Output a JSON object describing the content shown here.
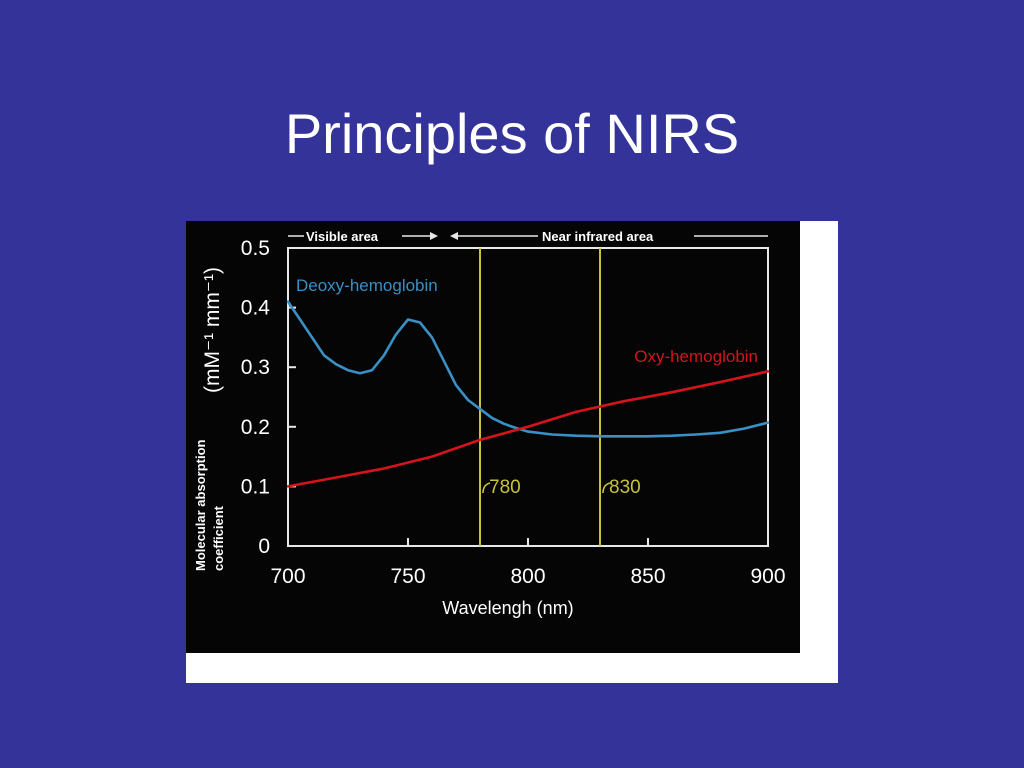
{
  "slide": {
    "title": "Principles of NIRS"
  },
  "colors": {
    "background": "#333399",
    "deoxy": "#3a8fc4",
    "oxy": "#d4141a",
    "marker": "#c8c23a",
    "axis": "#e8e8e8"
  },
  "chart_data": {
    "type": "line",
    "xlabel": "Wavelengh (nm)",
    "ylabel_main": "Molecular absorption",
    "ylabel_sub": "coefficient",
    "ylabel_unit": "(mM⁻¹ mm⁻¹)",
    "xlim": [
      700,
      900
    ],
    "ylim": [
      0,
      0.5
    ],
    "x_ticks": [
      700,
      750,
      800,
      850,
      900
    ],
    "x_tick_labels": [
      "700",
      "750",
      "800",
      "850",
      "900"
    ],
    "y_ticks": [
      0,
      0.1,
      0.2,
      0.3,
      0.4,
      0.5
    ],
    "y_tick_labels": [
      "0",
      "0.1",
      "0.2",
      "0.3",
      "0.4",
      "0.5"
    ],
    "region_labels": {
      "visible": "Visible area",
      "near_infrared": "Near infrared area"
    },
    "region_boundary": 780,
    "markers": [
      {
        "x": 780,
        "label": "780"
      },
      {
        "x": 830,
        "label": "830"
      }
    ],
    "series": [
      {
        "name": "Deoxy-hemoglobin",
        "x": [
          700,
          705,
          710,
          715,
          720,
          725,
          730,
          735,
          740,
          745,
          750,
          755,
          760,
          765,
          770,
          775,
          780,
          785,
          790,
          795,
          800,
          810,
          820,
          830,
          840,
          850,
          860,
          870,
          880,
          890,
          900
        ],
        "values": [
          0.41,
          0.38,
          0.35,
          0.32,
          0.305,
          0.295,
          0.29,
          0.295,
          0.32,
          0.355,
          0.38,
          0.375,
          0.35,
          0.31,
          0.27,
          0.245,
          0.23,
          0.215,
          0.205,
          0.198,
          0.192,
          0.187,
          0.185,
          0.184,
          0.184,
          0.184,
          0.185,
          0.187,
          0.19,
          0.197,
          0.207
        ]
      },
      {
        "name": "Oxy-hemoglobin",
        "x": [
          700,
          720,
          740,
          760,
          780,
          800,
          820,
          840,
          860,
          880,
          900
        ],
        "values": [
          0.1,
          0.115,
          0.13,
          0.15,
          0.178,
          0.2,
          0.225,
          0.243,
          0.258,
          0.275,
          0.293
        ]
      }
    ]
  }
}
